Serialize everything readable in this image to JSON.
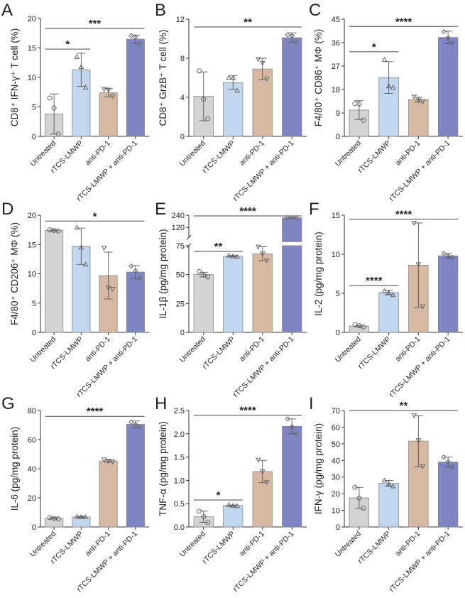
{
  "figure": {
    "groups": [
      "Untreated",
      "rTCS-LMWP",
      "anti-PD-1",
      "rTCS-LMWP + anti-PD-1"
    ],
    "colors": {
      "Untreated": "#d3d3d3",
      "rTCS-LMWP": "#c2d6ef",
      "anti-PD-1": "#d7b8a3",
      "rTCS-LMWP + anti-PD-1": "#7f85c2",
      "axis": "#333333",
      "errorbar": "#555555",
      "bar_edge": "#888888"
    },
    "markers": [
      "circle",
      "triangle-up",
      "triangle-down",
      "diamond"
    ]
  },
  "chart_data": [
    {
      "panel": "A",
      "type": "bar",
      "ylabel": "CD8⁺ IFN-γ⁺ T cell (%)",
      "categories": [
        "Untreated",
        "rTCS-LMWP",
        "anti-PD-1",
        "rTCS-LMWP + anti-PD-1"
      ],
      "ylim": [
        0,
        20
      ],
      "yticks": [
        "0",
        "5",
        "10",
        "15",
        "20"
      ],
      "ytick_values": [
        0,
        5,
        10,
        15,
        20
      ],
      "values": [
        3.8,
        11.3,
        7.4,
        16.5
      ],
      "errors": [
        3.4,
        2.8,
        0.7,
        0.7
      ],
      "points": [
        [
          6.5,
          4.8,
          0.4
        ],
        [
          13.5,
          11.8,
          8.3
        ],
        [
          8.0,
          7.9,
          6.8
        ],
        [
          17.1,
          16.8,
          15.7
        ]
      ],
      "significance": [
        {
          "from": 0,
          "to": 1,
          "label": "*",
          "level": 14.8
        },
        {
          "from": 0,
          "to": 3,
          "label": "***",
          "level": 18.3
        }
      ]
    },
    {
      "panel": "B",
      "type": "bar",
      "ylabel": "CD8⁺ GrzB⁺ T cell (%)",
      "categories": [
        "Untreated",
        "rTCS-LMWP",
        "anti-PD-1",
        "rTCS-LMWP + anti-PD-1"
      ],
      "ylim": [
        0,
        12
      ],
      "yticks": [
        "0",
        "4",
        "8",
        "12"
      ],
      "ytick_values": [
        0,
        4,
        8,
        12
      ],
      "values": [
        4.1,
        5.5,
        6.9,
        10.1
      ],
      "errors": [
        2.5,
        0.7,
        1.1,
        0.5
      ],
      "points": [
        [
          6.7,
          3.8,
          1.8
        ],
        [
          6.0,
          6.0,
          4.7
        ],
        [
          7.9,
          7.5,
          5.9
        ],
        [
          10.4,
          10.3,
          9.7
        ]
      ],
      "significance": [
        {
          "from": 0,
          "to": 3,
          "label": "**",
          "level": 11.2
        }
      ]
    },
    {
      "panel": "C",
      "type": "bar",
      "ylabel": "F4/80⁺ CD86⁺ MΦ (%)",
      "categories": [
        "Untreated",
        "rTCS-LMWP",
        "anti-PD-1",
        "rTCS-LMWP + anti-PD-1"
      ],
      "ylim": [
        0,
        45
      ],
      "yticks": [
        "0",
        "9",
        "18",
        "27",
        "36",
        "45"
      ],
      "ytick_values": [
        0,
        9,
        18,
        27,
        36,
        45
      ],
      "values": [
        10.1,
        22.6,
        14.1,
        38.0
      ],
      "errors": [
        3.6,
        6.1,
        0.9,
        2.4
      ],
      "points": [
        [
          12.6,
          12.5,
          6.2
        ],
        [
          29.5,
          19.3,
          18.8
        ],
        [
          15.2,
          13.8,
          13.3
        ],
        [
          40.2,
          37.8,
          35.8
        ]
      ],
      "significance": [
        {
          "from": 0,
          "to": 1,
          "label": "*",
          "level": 32.5
        },
        {
          "from": 0,
          "to": 3,
          "label": "****",
          "level": 42.2
        }
      ]
    },
    {
      "panel": "D",
      "type": "bar",
      "ylabel": "F4/80⁺ CD206⁺ MΦ (%)",
      "categories": [
        "Untreated",
        "rTCS-LMWP",
        "anti-PD-1",
        "rTCS-LMWP + anti-PD-1"
      ],
      "ylim": [
        0,
        20
      ],
      "yticks": [
        "0",
        "5",
        "10",
        "15",
        "20"
      ],
      "ytick_values": [
        0,
        5,
        10,
        15,
        20
      ],
      "values": [
        17.4,
        14.7,
        9.7,
        10.3
      ],
      "errors": [
        0.1,
        3.1,
        4.0,
        1.1
      ],
      "points": [
        [
          17.5,
          17.4,
          17.3
        ],
        [
          17.9,
          14.5,
          11.6
        ],
        [
          14.4,
          7.6,
          7.4
        ],
        [
          11.3,
          10.5,
          9.2
        ]
      ],
      "significance": [
        {
          "from": 0,
          "to": 3,
          "label": "*",
          "level": 19.0
        }
      ]
    },
    {
      "panel": "E",
      "type": "bar",
      "ylabel": "IL-1β (pg/mg protein)",
      "categories": [
        "Untreated",
        "rTCS-LMWP",
        "anti-PD-1",
        "rTCS-LMWP + anti-PD-1"
      ],
      "axis_break": {
        "lower": [
          0,
          75
        ],
        "upper": [
          75,
          240
        ],
        "upper_ticks": [
          120,
          240
        ]
      },
      "ylim": [
        0,
        240
      ],
      "yticks": [
        "0",
        "25",
        "50",
        "75",
        "120",
        "240"
      ],
      "ytick_values": [
        0,
        25,
        50,
        75,
        120,
        240
      ],
      "values": [
        50,
        66,
        68,
        215
      ],
      "errors": [
        2,
        0.5,
        6,
        1
      ],
      "points": [
        [
          52.5,
          49.5,
          48
        ],
        [
          66.5,
          66,
          65.5
        ],
        [
          74,
          68,
          62
        ],
        [
          216,
          215,
          215
        ]
      ],
      "significance": [
        {
          "from": 0,
          "to": 1,
          "label": "**",
          "level": 70
        },
        {
          "from": 0,
          "to": 3,
          "label": "****",
          "level": 240
        }
      ]
    },
    {
      "panel": "F",
      "type": "bar",
      "ylabel": "IL-2 (pg/mg protein)",
      "categories": [
        "Untreated",
        "rTCS-LMWP",
        "anti-PD-1",
        "rTCS-LMWP + anti-PD-1"
      ],
      "ylim": [
        0,
        15
      ],
      "yticks": [
        "0",
        "5",
        "10",
        "15"
      ],
      "ytick_values": [
        0,
        5,
        10,
        15
      ],
      "values": [
        0.8,
        5.1,
        8.6,
        9.8
      ],
      "errors": [
        0.1,
        0.3,
        5.4,
        0.3
      ],
      "points": [
        [
          1.0,
          0.85,
          0.7
        ],
        [
          5.3,
          5.1,
          4.8
        ],
        [
          14.0,
          8.7,
          3.3
        ],
        [
          10.1,
          9.8,
          9.6
        ]
      ],
      "significance": [
        {
          "from": 0,
          "to": 1,
          "label": "****",
          "level": 6.0
        },
        {
          "from": 0,
          "to": 3,
          "label": "****",
          "level": 14.5
        }
      ]
    },
    {
      "panel": "G",
      "type": "bar",
      "ylabel": "IL-6 (pg/mg protein)",
      "categories": [
        "Untreated",
        "rTCS-LMWP",
        "anti-PD-1",
        "rTCS-LMWP + anti-PD-1"
      ],
      "ylim": [
        0,
        80
      ],
      "yticks": [
        "0",
        "20",
        "40",
        "60",
        "80"
      ],
      "ytick_values": [
        0,
        20,
        40,
        60,
        80
      ],
      "values": [
        6.0,
        6.9,
        45.3,
        70.5
      ],
      "errors": [
        0.6,
        0.4,
        0.8,
        2.3
      ],
      "points": [
        [
          6.5,
          6.0,
          5.6
        ],
        [
          7.1,
          6.9,
          6.8
        ],
        [
          46.3,
          45.3,
          44.8
        ],
        [
          72.0,
          70.5,
          68.5
        ]
      ],
      "significance": [
        {
          "from": 0,
          "to": 3,
          "label": "****",
          "level": 76
        }
      ]
    },
    {
      "panel": "H",
      "type": "bar",
      "ylabel": "TNF-α (pg/mg protein)",
      "categories": [
        "Untreated",
        "rTCS-LMWP",
        "anti-PD-1",
        "rTCS-LMWP + anti-PD-1"
      ],
      "ylim": [
        0,
        2.5
      ],
      "yticks": [
        "0.0",
        "0.5",
        "1.0",
        "1.5",
        "2.0",
        "2.5"
      ],
      "ytick_values": [
        0,
        0.5,
        1.0,
        1.5,
        2.0,
        2.5
      ],
      "values": [
        0.22,
        0.46,
        1.19,
        2.16
      ],
      "errors": [
        0.12,
        0.01,
        0.24,
        0.16
      ],
      "points": [
        [
          0.34,
          0.22,
          0.1
        ],
        [
          0.47,
          0.46,
          0.45
        ],
        [
          1.44,
          1.19,
          0.96
        ],
        [
          2.32,
          2.15,
          2.0
        ]
      ],
      "significance": [
        {
          "from": 0,
          "to": 1,
          "label": "*",
          "level": 0.58
        },
        {
          "from": 0,
          "to": 3,
          "label": "****",
          "level": 2.4
        }
      ]
    },
    {
      "panel": "I",
      "type": "bar",
      "ylabel": "IFN-γ (pg/mg protein)",
      "categories": [
        "Untreated",
        "rTCS-LMWP",
        "anti-PD-1",
        "rTCS-LMWP + anti-PD-1"
      ],
      "ylim": [
        0,
        70
      ],
      "yticks": [
        "0",
        "10",
        "20",
        "30",
        "40",
        "50",
        "60",
        "70"
      ],
      "ytick_values": [
        0,
        10,
        20,
        30,
        40,
        50,
        60,
        70
      ],
      "values": [
        17.5,
        26.2,
        51.6,
        39.0
      ],
      "errors": [
        6.3,
        1.8,
        15.3,
        3.0
      ],
      "points": [
        [
          23.8,
          17.4,
          11.3
        ],
        [
          28.0,
          26.0,
          24.5
        ],
        [
          67.0,
          52.0,
          36.5
        ],
        [
          42.0,
          39.2,
          36.0
        ]
      ],
      "significance": [
        {
          "from": 0,
          "to": 3,
          "label": "**",
          "level": 70
        }
      ]
    }
  ]
}
